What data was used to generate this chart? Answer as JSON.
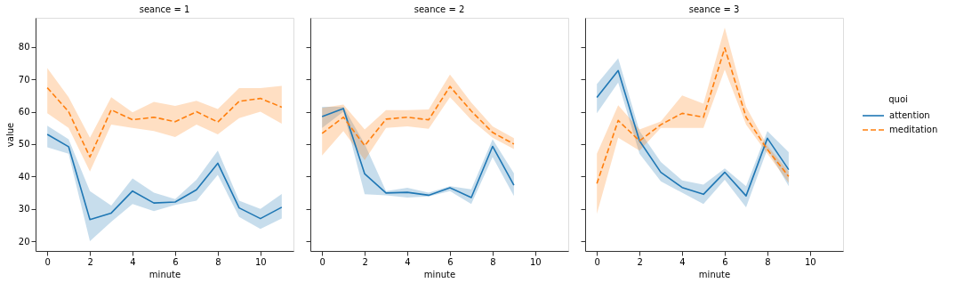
{
  "chart_data": [
    {
      "type": "line",
      "title": "seance = 1",
      "xlabel": "minute",
      "ylabel": "value",
      "x": [
        0,
        1,
        2,
        3,
        4,
        5,
        6,
        7,
        8,
        9,
        10,
        11
      ],
      "xlim": [
        -0.55,
        11.55
      ],
      "xticks": [
        0,
        2,
        4,
        6,
        8,
        10
      ],
      "ylim": [
        17,
        89
      ],
      "yticks": [
        20,
        30,
        40,
        50,
        60,
        70,
        80
      ],
      "grid": false,
      "series": [
        {
          "color": "#1f77b4",
          "line_style": "solid",
          "values": [
            53,
            49.2,
            26.7,
            28.7,
            35.5,
            31.8,
            32.1,
            35.9,
            44.1,
            30.3,
            27.0,
            30.5
          ],
          "lower": [
            49,
            47,
            20,
            26,
            31.5,
            29.3,
            31.2,
            32.5,
            40.5,
            27.5,
            23.8,
            27
          ],
          "upper": [
            55.7,
            51.5,
            35.5,
            31,
            39.4,
            35,
            33,
            39,
            48,
            32.5,
            30,
            34.6
          ]
        },
        {
          "color": "#ff7f0e",
          "line_style": "dashed",
          "values": [
            67.4,
            60,
            46,
            60.6,
            57.5,
            58.3,
            56.9,
            60,
            56.8,
            63.2,
            64.1,
            61.4
          ],
          "lower": [
            59.5,
            55,
            41.5,
            56,
            55,
            54,
            52.2,
            56,
            53,
            58,
            60,
            56.3
          ],
          "upper": [
            73.5,
            64.5,
            52,
            64.5,
            59.8,
            63,
            61.8,
            63.4,
            60.8,
            67.3,
            67.3,
            68
          ]
        }
      ]
    },
    {
      "type": "line",
      "title": "seance = 2",
      "xlabel": "minute",
      "x": [
        0,
        1,
        2,
        3,
        4,
        5,
        6,
        7,
        8,
        9
      ],
      "xlim": [
        -0.55,
        11.55
      ],
      "xticks": [
        0,
        2,
        4,
        6,
        8,
        10
      ],
      "ylim": [
        17,
        89
      ],
      "yticks": [
        20,
        30,
        40,
        50,
        60,
        70,
        80
      ],
      "tick_labels": "x",
      "grid": false,
      "series": [
        {
          "color": "#1f77b4",
          "line_style": "solid",
          "values": [
            58.5,
            61,
            40.8,
            34.9,
            35.1,
            34.2,
            36.5,
            33.5,
            49.3,
            37.3
          ],
          "lower": [
            55,
            60,
            34.5,
            34.2,
            33.5,
            33.8,
            35.5,
            31.5,
            46,
            34
          ],
          "upper": [
            61.5,
            61.5,
            50,
            35.5,
            36.5,
            35,
            37,
            36,
            51.5,
            41
          ]
        },
        {
          "color": "#ff7f0e",
          "line_style": "dashed",
          "values": [
            53.3,
            58.3,
            49.5,
            57.7,
            58.3,
            57.5,
            67.8,
            60.2,
            53.6,
            50
          ],
          "lower": [
            46.5,
            54,
            45,
            55,
            55.5,
            54.7,
            64.5,
            57.5,
            52,
            48.5
          ],
          "upper": [
            61.2,
            62.2,
            54.5,
            60.5,
            60.5,
            60.7,
            71.5,
            62.8,
            55.5,
            51.8
          ]
        }
      ]
    },
    {
      "type": "line",
      "title": "seance = 3",
      "xlabel": "minute",
      "x": [
        0,
        1,
        2,
        3,
        4,
        5,
        6,
        7,
        8,
        9
      ],
      "xlim": [
        -0.55,
        11.55
      ],
      "xticks": [
        0,
        2,
        4,
        6,
        8,
        10
      ],
      "ylim": [
        17,
        89
      ],
      "yticks": [
        20,
        30,
        40,
        50,
        60,
        70,
        80
      ],
      "tick_labels": "x",
      "grid": false,
      "legend": "right",
      "legend_title": "quoi",
      "series": [
        {
          "name": "attention",
          "color": "#1f77b4",
          "line_style": "solid",
          "values": [
            64.4,
            72.7,
            51,
            41.3,
            36.6,
            34.5,
            41.3,
            34,
            51.8,
            42.1
          ],
          "lower": [
            59.5,
            69,
            47,
            38.5,
            35,
            31.5,
            39,
            30.5,
            48.5,
            37
          ],
          "upper": [
            68.5,
            76.5,
            54,
            44.5,
            38.8,
            37.5,
            42.5,
            37,
            54,
            47.5
          ]
        },
        {
          "name": "meditation",
          "color": "#ff7f0e",
          "line_style": "dashed",
          "values": [
            37.8,
            57.3,
            51,
            56,
            59.5,
            58.3,
            79.7,
            58.3,
            48.3,
            40
          ],
          "lower": [
            28.5,
            52,
            48,
            55,
            55,
            55,
            73,
            56,
            47,
            38
          ],
          "upper": [
            47,
            62,
            54.5,
            57,
            65,
            62.5,
            86,
            61.5,
            49.5,
            41.5
          ]
        }
      ]
    }
  ]
}
